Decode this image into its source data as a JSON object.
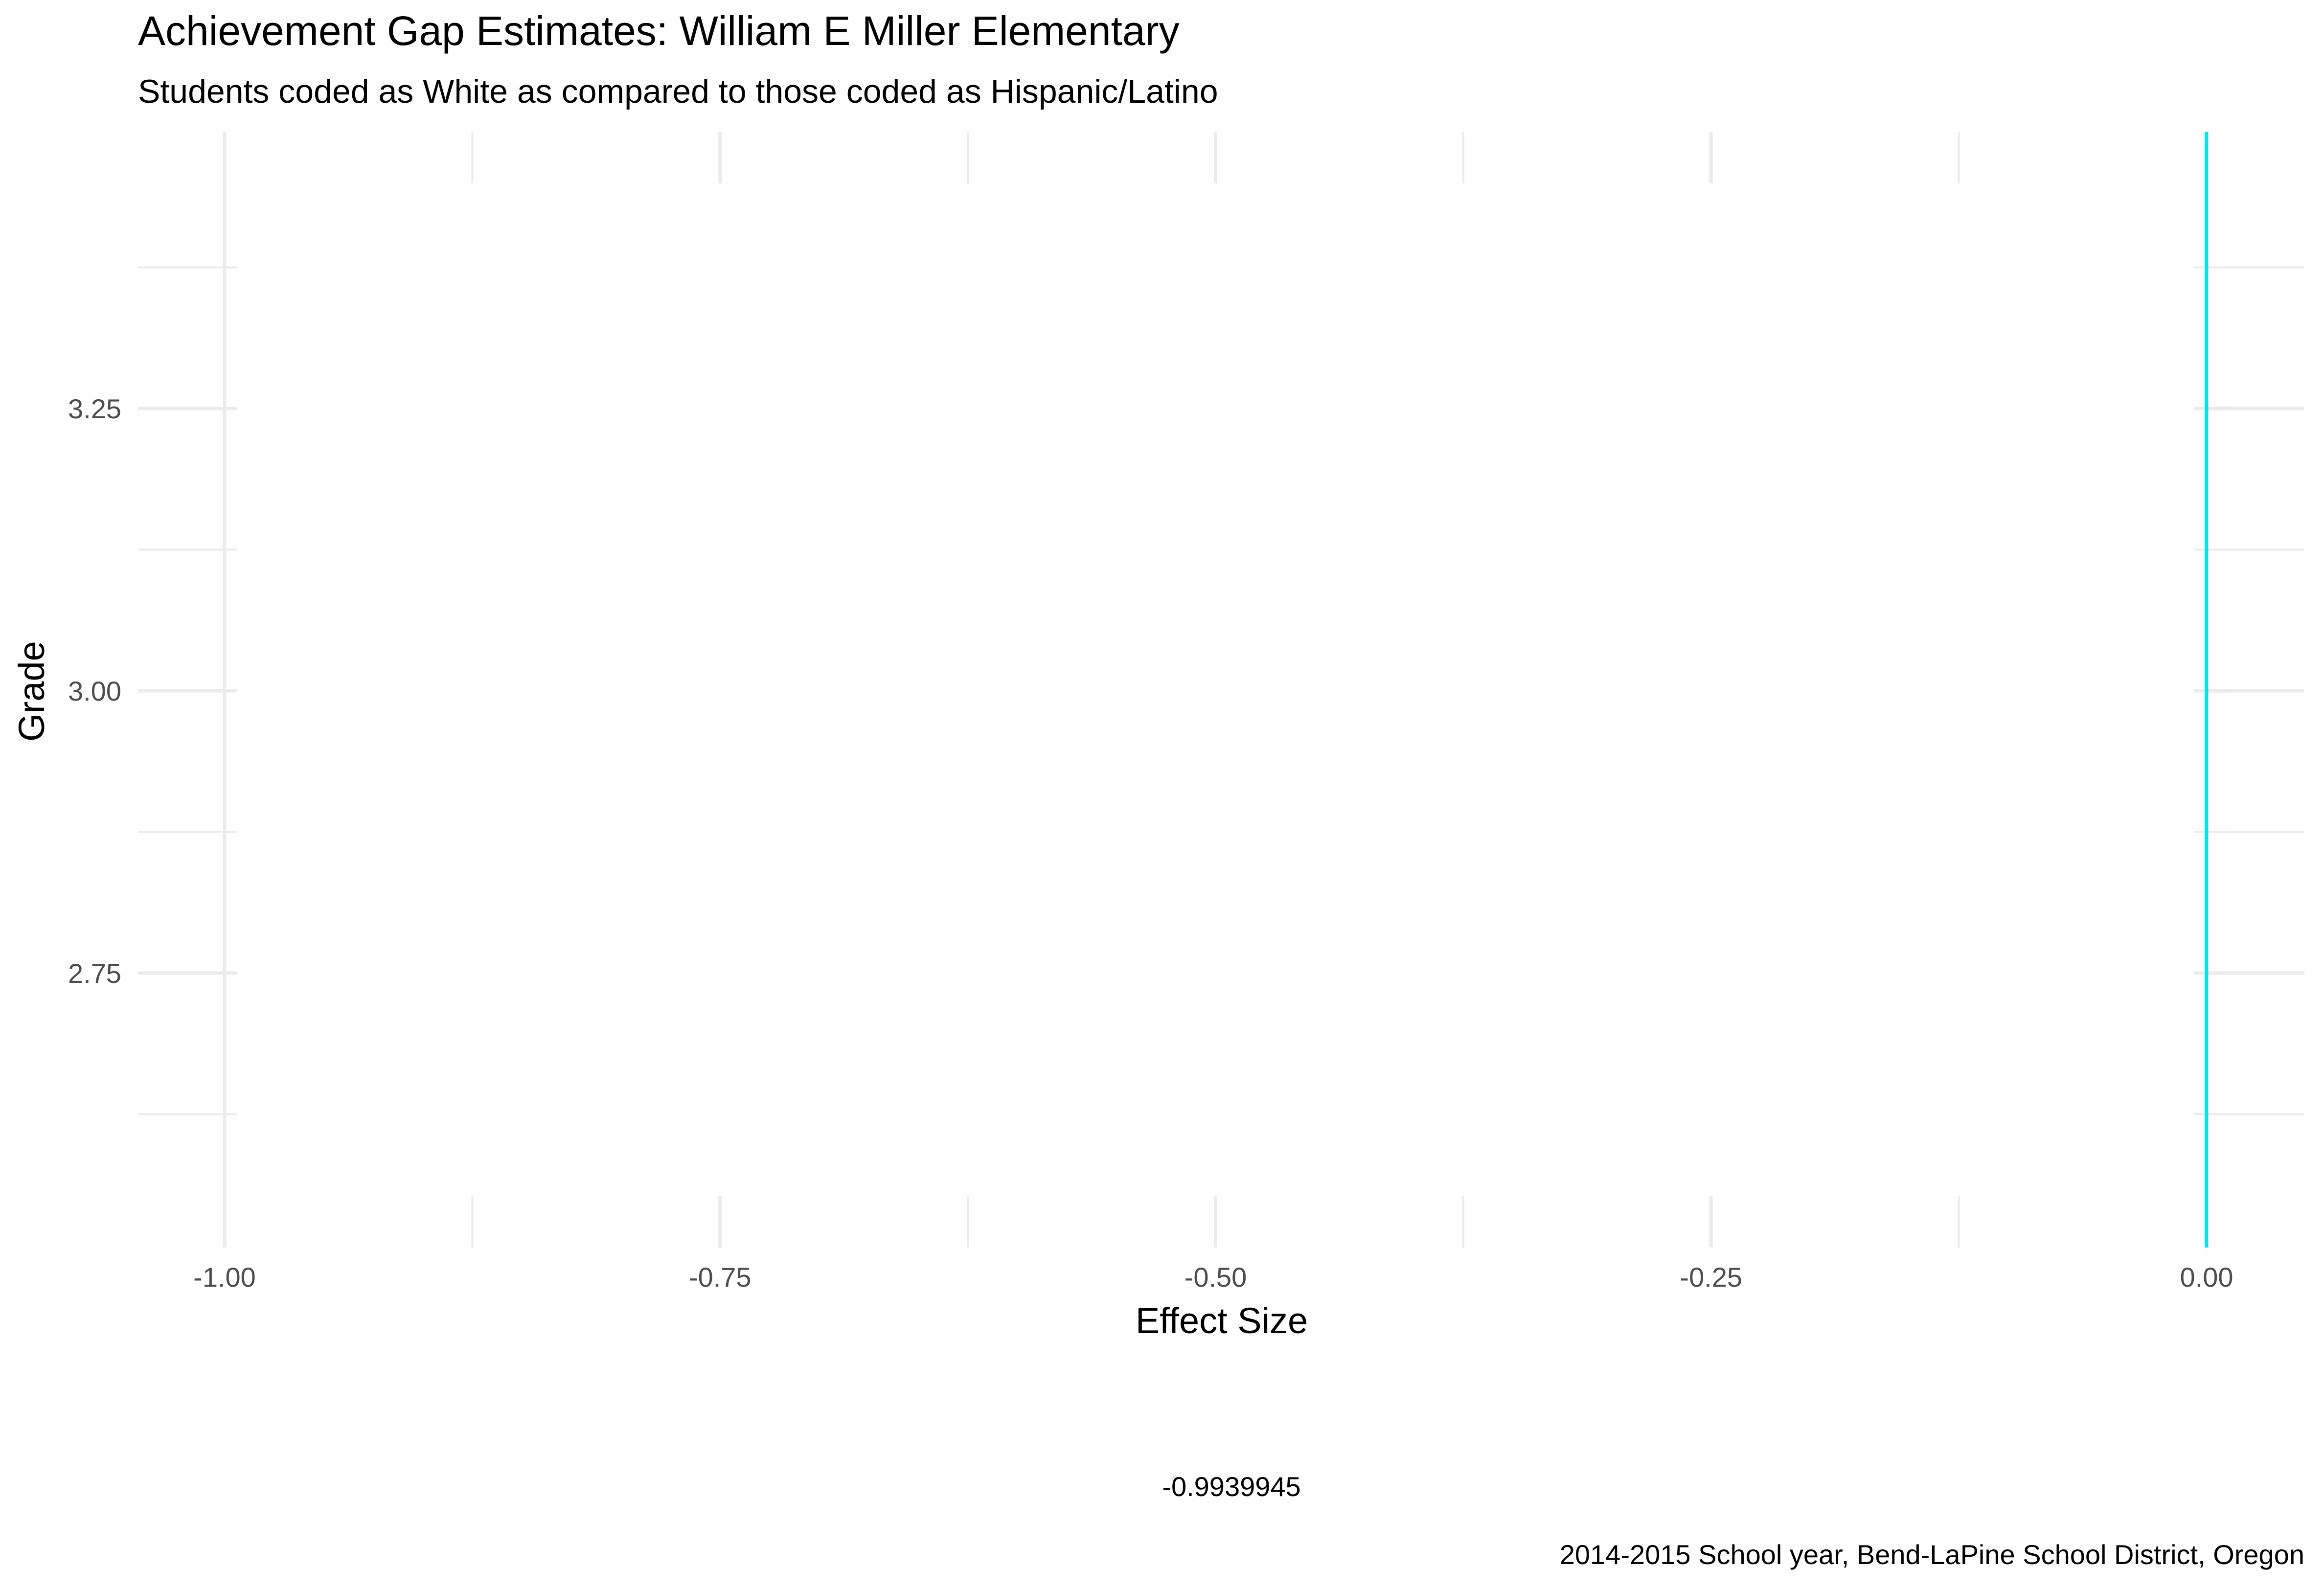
{
  "chart_data": {
    "type": "line",
    "title": "Achievement Gap Estimates: William E Miller Elementary",
    "subtitle": "Students coded as White as compared to those coded as Hispanic/Latino",
    "xlabel": "Effect Size",
    "ylabel": "Grade",
    "xlim": [
      -1.0,
      0.0
    ],
    "ylim": [
      2.5,
      3.5
    ],
    "x_ticks": [
      "-1.00",
      "-0.75",
      "-0.50",
      "-0.25",
      "0.00"
    ],
    "x_tick_values": [
      -1.0,
      -0.75,
      -0.5,
      -0.25,
      0.0
    ],
    "y_ticks": [
      "3.25",
      "3.00",
      "2.75"
    ],
    "y_tick_values": [
      3.25,
      3.0,
      2.75
    ],
    "reference_line": {
      "x": 0.0,
      "color": "#00e5ee"
    },
    "legend_value": "-0.9939945",
    "legend_placement": "bottom",
    "grid": true,
    "caption": "2014-2015 School year, Bend-LaPine School District, Oregon"
  }
}
